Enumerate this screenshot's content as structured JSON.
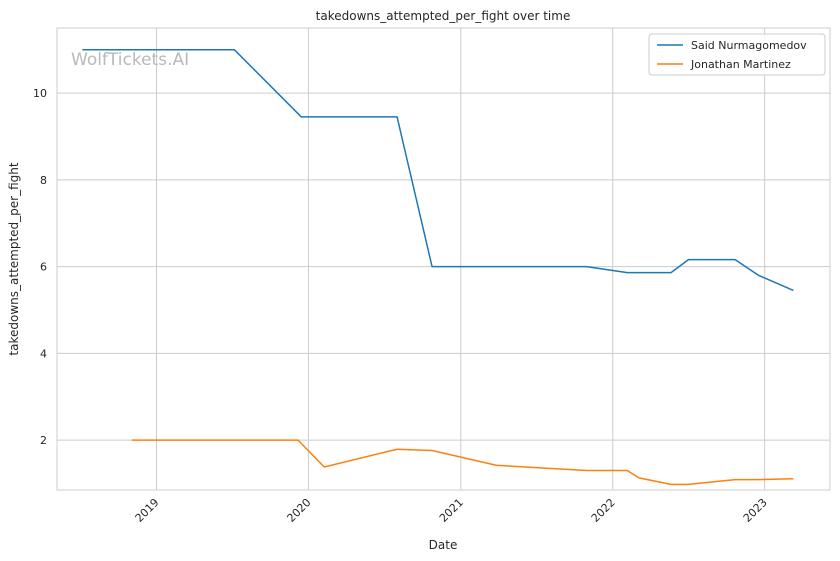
{
  "watermark": "WolfTickets.AI",
  "chart_data": {
    "type": "line",
    "title": "takedowns_attempted_per_fight over time",
    "xlabel": "Date",
    "ylabel": "takedowns_attempted_per_fight",
    "x_ticks": [
      "2019",
      "2020",
      "2021",
      "2022",
      "2023"
    ],
    "y_ticks": [
      2,
      4,
      6,
      8,
      10
    ],
    "xlim": [
      "2018-05-07",
      "2023-06-07"
    ],
    "ylim": [
      0.85,
      11.5
    ],
    "grid": true,
    "legend_position": "top-right",
    "series": [
      {
        "name": "Said Nurmagomedov",
        "color": "#1f77b4",
        "x": [
          "2018-07-07",
          "2019-07-07",
          "2019-12-15",
          "2020-08-01",
          "2020-10-24",
          "2021-10-30",
          "2022-02-05",
          "2022-05-21",
          "2022-07-02",
          "2022-10-22",
          "2022-12-17",
          "2023-03-11"
        ],
        "values": [
          11.0,
          11.0,
          9.45,
          9.45,
          6.0,
          6.0,
          5.86,
          5.86,
          6.16,
          6.16,
          5.8,
          5.45
        ]
      },
      {
        "name": "Jonathan Martinez",
        "color": "#ff7f0e",
        "x": [
          "2018-11-03",
          "2019-12-07",
          "2020-02-08",
          "2020-08-01",
          "2020-10-24",
          "2021-03-27",
          "2021-10-30",
          "2022-02-05",
          "2022-03-05",
          "2022-05-21",
          "2022-07-02",
          "2022-10-22",
          "2022-12-17",
          "2023-03-11"
        ],
        "values": [
          2.0,
          2.0,
          1.38,
          1.79,
          1.76,
          1.42,
          1.3,
          1.3,
          1.13,
          0.98,
          0.98,
          1.09,
          1.09,
          1.11
        ]
      }
    ]
  }
}
